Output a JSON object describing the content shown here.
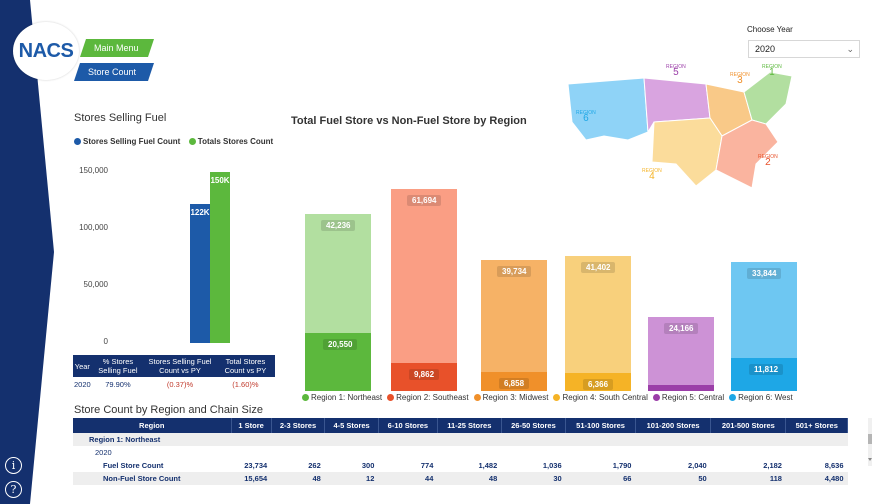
{
  "nav": {
    "logo": "NACS",
    "main_menu": "Main Menu",
    "store_count": "Store Count"
  },
  "filter": {
    "label": "Choose Year",
    "value": "2020"
  },
  "left_chart": {
    "title": "Stores Selling Fuel",
    "legend": [
      {
        "name": "Stores Selling Fuel Count",
        "color": "#1d5aa8"
      },
      {
        "name": "Totals Stores Count",
        "color": "#5cb83d"
      }
    ],
    "yticks": [
      "150,000",
      "100,000",
      "50,000",
      "0"
    ]
  },
  "chart_data": [
    {
      "type": "bar",
      "categories": [
        "2020"
      ],
      "series": [
        {
          "name": "Stores Selling Fuel Count",
          "values": [
            122000
          ],
          "label": "122K",
          "color": "#1d5aa8"
        },
        {
          "name": "Totals Stores Count",
          "values": [
            150000
          ],
          "label": "150K",
          "color": "#5cb83d"
        }
      ],
      "title": "Stores Selling Fuel",
      "ylim": [
        0,
        150000
      ]
    },
    {
      "type": "bar",
      "title": "Total Fuel Store vs Non-Fuel Store by Region",
      "categories": [
        "Region 1: Northeast",
        "Region 2: Southeast",
        "Region 3: Midwest",
        "Region 4: South Central",
        "Region 5: Central",
        "Region 6: West"
      ],
      "stacked": true,
      "series": [
        {
          "values": [
            20550,
            9862,
            6858,
            6366,
            2000,
            11812
          ]
        },
        {
          "values": [
            42236,
            61694,
            39734,
            41402,
            24166,
            33844
          ]
        }
      ],
      "segment_labels": [
        [
          "20,550",
          "9,862",
          "6,858",
          "6,366",
          "",
          "11,812"
        ],
        [
          "42,236",
          "61,694",
          "39,734",
          "41,402",
          "24,166",
          "33,844"
        ]
      ],
      "colors": {
        "lower": [
          "#5cb83d",
          "#e8512a",
          "#f0902a",
          "#f5b326",
          "#9b3ea8",
          "#1ea7e6"
        ],
        "upper": [
          "#b2dfa0",
          "#fa9e84",
          "#f6b266",
          "#f8d07c",
          "#cd92d6",
          "#6ec7f2"
        ]
      },
      "legend": [
        "Region 1: Northeast",
        "Region 2: Southeast",
        "Region 3: Midwest",
        "Region 4: South Central",
        "Region 5: Central",
        "Region 6: West"
      ]
    }
  ],
  "summary_table": {
    "headers": [
      "Year",
      "% Stores Selling Fuel",
      "Stores Selling Fuel Count vs PY",
      "Total Stores Count vs PY"
    ],
    "row": [
      "2020",
      "79.90%",
      "(0.37)%",
      "(1.60)%"
    ]
  },
  "map": {
    "regions": [
      {
        "name": "REGION",
        "num": "5",
        "color": "#c45fcd"
      },
      {
        "name": "REGION",
        "num": "3",
        "color": "#f0902a"
      },
      {
        "name": "REGION",
        "num": "1",
        "color": "#5cb83d"
      },
      {
        "name": "REGION",
        "num": "6",
        "color": "#1ea7e6"
      },
      {
        "name": "REGION",
        "num": "4",
        "color": "#f5b326"
      },
      {
        "name": "REGION",
        "num": "2",
        "color": "#e8512a"
      }
    ]
  },
  "region_table": {
    "title": "Store Count by Region and Chain Size",
    "headers": [
      "Region",
      "1 Store",
      "2-3 Stores",
      "4-5 Stores",
      "6-10 Stores",
      "11-25 Stores",
      "26-50 Stores",
      "51-100 Stores",
      "101-200 Stores",
      "201-500 Stores",
      "501+ Stores"
    ],
    "group": "Region 1: Northeast",
    "year": "2020",
    "rows": [
      {
        "label": "Fuel Store Count",
        "values": [
          "23,734",
          "262",
          "300",
          "774",
          "1,482",
          "1,036",
          "1,790",
          "2,040",
          "2,182",
          "8,636"
        ]
      },
      {
        "label": "Non-Fuel Store Count",
        "values": [
          "15,654",
          "48",
          "12",
          "44",
          "48",
          "30",
          "66",
          "50",
          "118",
          "4,480"
        ]
      }
    ]
  }
}
